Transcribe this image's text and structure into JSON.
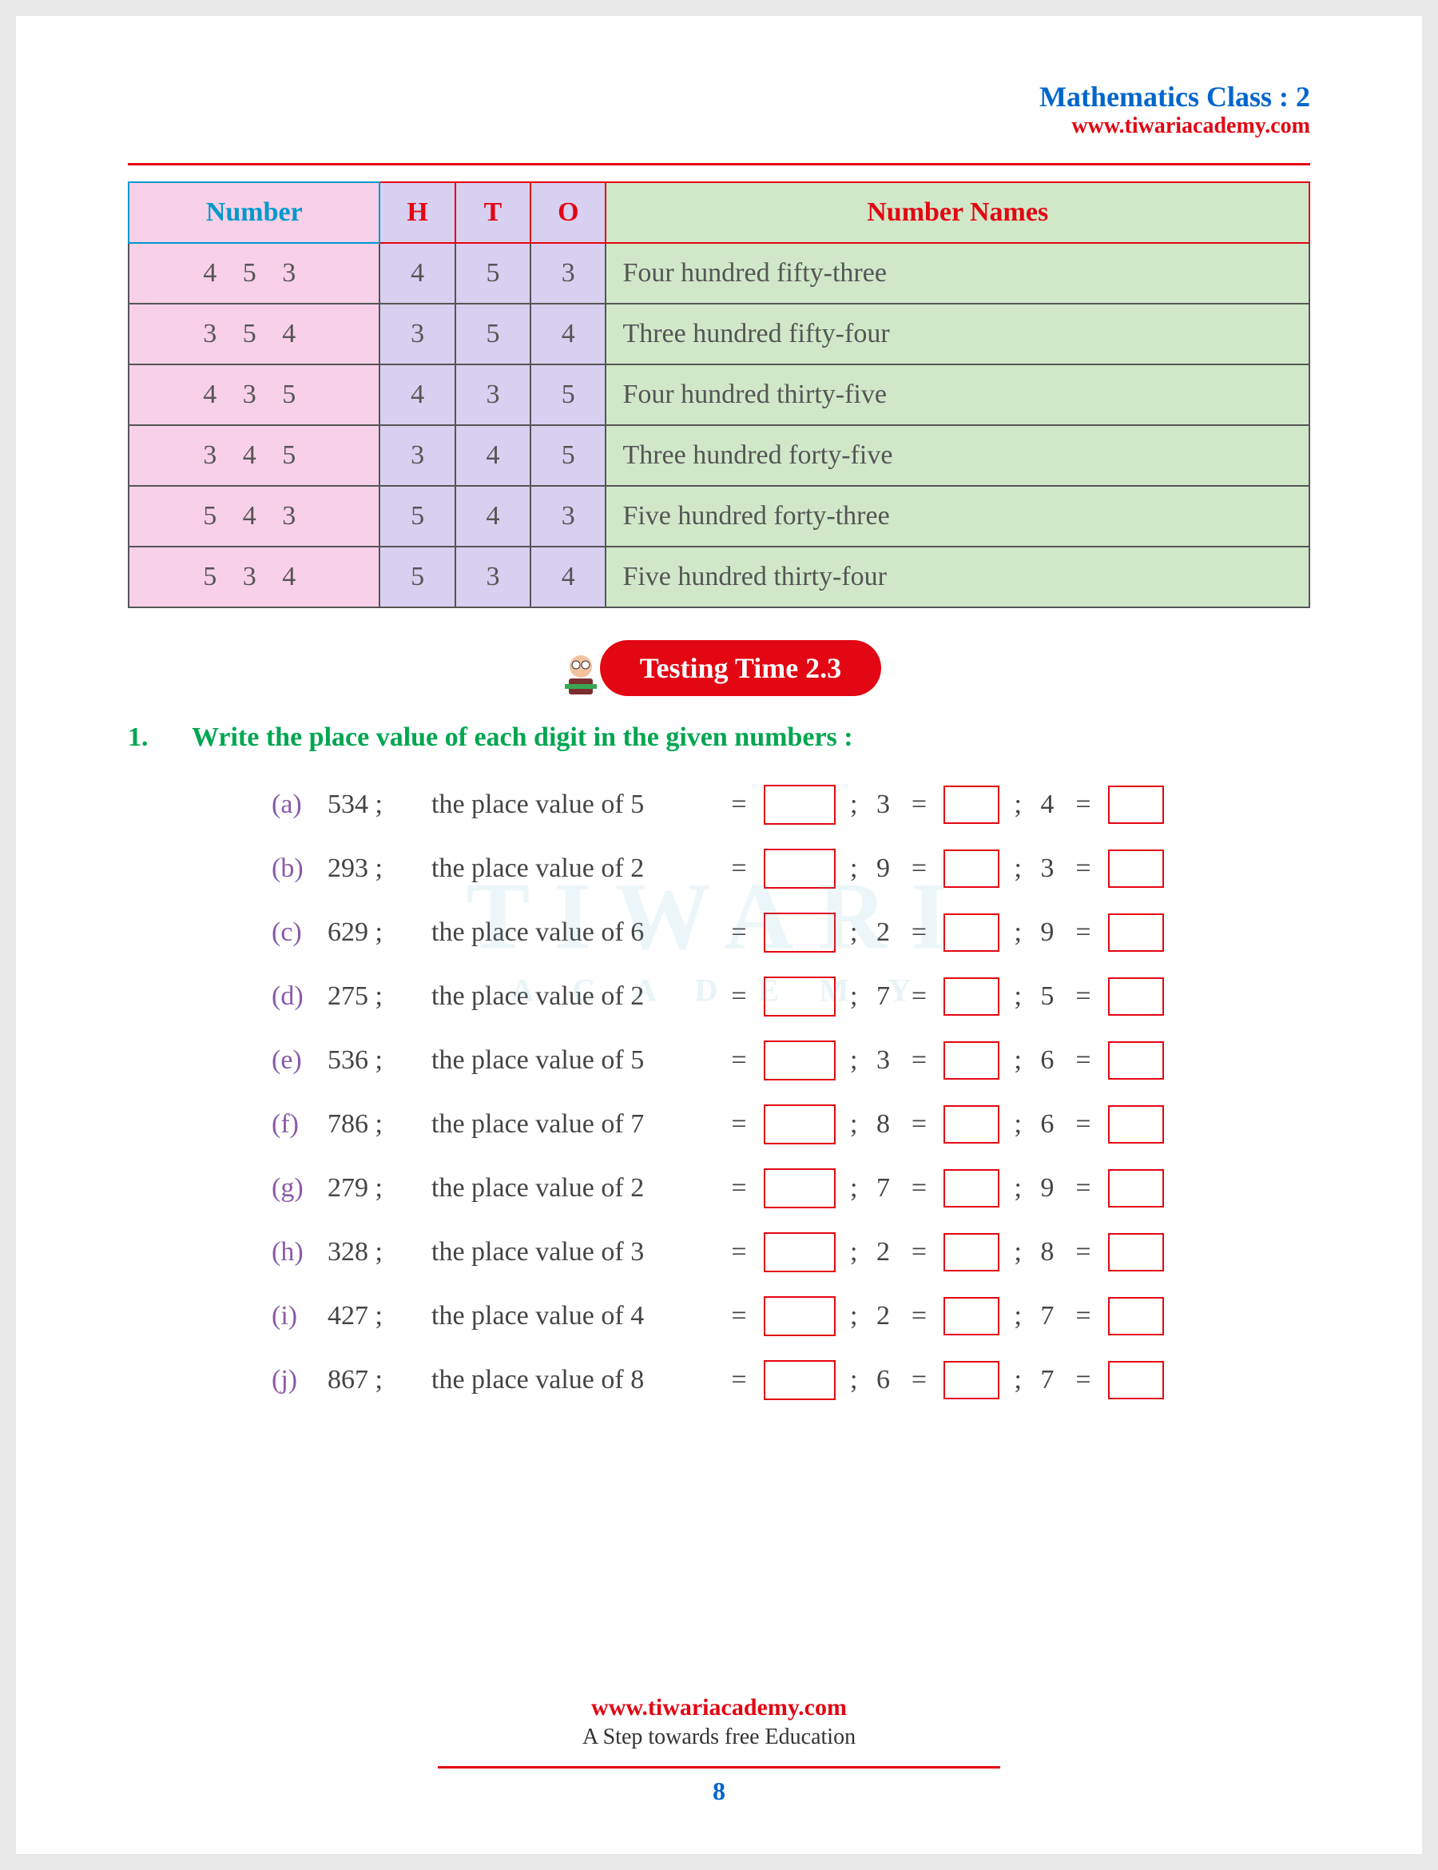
{
  "header": {
    "title": "Mathematics Class : 2",
    "url": "www.tiwariacademy.com"
  },
  "table": {
    "headers": {
      "number": "Number",
      "h": "H",
      "t": "T",
      "o": "O",
      "names": "Number Names"
    },
    "rows": [
      {
        "num": "4 5 3",
        "h": "4",
        "t": "5",
        "o": "3",
        "name": "Four hundred fifty-three"
      },
      {
        "num": "3 5 4",
        "h": "3",
        "t": "5",
        "o": "4",
        "name": "Three hundred fifty-four"
      },
      {
        "num": "4 3 5",
        "h": "4",
        "t": "3",
        "o": "5",
        "name": "Four hundred thirty-five"
      },
      {
        "num": "3 4 5",
        "h": "3",
        "t": "4",
        "o": "5",
        "name": "Three hundred forty-five"
      },
      {
        "num": "5 4 3",
        "h": "5",
        "t": "4",
        "o": "3",
        "name": "Five hundred forty-three"
      },
      {
        "num": "5 3 4",
        "h": "5",
        "t": "3",
        "o": "4",
        "name": "Five hundred thirty-four"
      }
    ]
  },
  "banner": {
    "text": "Testing Time 2.3"
  },
  "question": {
    "num": "1.",
    "text": "Write the place value of each digit in the given numbers :"
  },
  "items": [
    {
      "l": "(a)",
      "n": "534 ;",
      "p": "the place value of 5",
      "d2": "3",
      "d3": "4"
    },
    {
      "l": "(b)",
      "n": "293 ;",
      "p": "the place value of 2",
      "d2": "9",
      "d3": "3"
    },
    {
      "l": "(c)",
      "n": "629 ;",
      "p": "the place value of 6",
      "d2": "2",
      "d3": "9"
    },
    {
      "l": "(d)",
      "n": "275 ;",
      "p": "the place value of 2",
      "d2": "7",
      "d3": "5"
    },
    {
      "l": "(e)",
      "n": "536 ;",
      "p": "the place value of 5",
      "d2": "3",
      "d3": "6"
    },
    {
      "l": "(f)",
      "n": "786 ;",
      "p": "the place value of 7",
      "d2": "8",
      "d3": "6"
    },
    {
      "l": "(g)",
      "n": "279 ;",
      "p": "the place value of 2",
      "d2": "7",
      "d3": "9"
    },
    {
      "l": "(h)",
      "n": "328 ;",
      "p": "the place value of 3",
      "d2": "2",
      "d3": "8"
    },
    {
      "l": "(i)",
      "n": "427 ;",
      "p": "the place value of 4",
      "d2": "2",
      "d3": "7"
    },
    {
      "l": "(j)",
      "n": "867 ;",
      "p": "the place value of 8",
      "d2": "6",
      "d3": "7"
    }
  ],
  "footer": {
    "url": "www.tiwariacademy.com",
    "tag": "A Step towards free Education",
    "page": "8"
  },
  "watermark": {
    "main": "TIWARI",
    "sub": "A C A D E M Y"
  },
  "colors": {
    "blue": "#0066cc",
    "red": "#e30613",
    "green": "#00a650",
    "purple": "#8a5aa8",
    "cyan": "#0099cc"
  }
}
